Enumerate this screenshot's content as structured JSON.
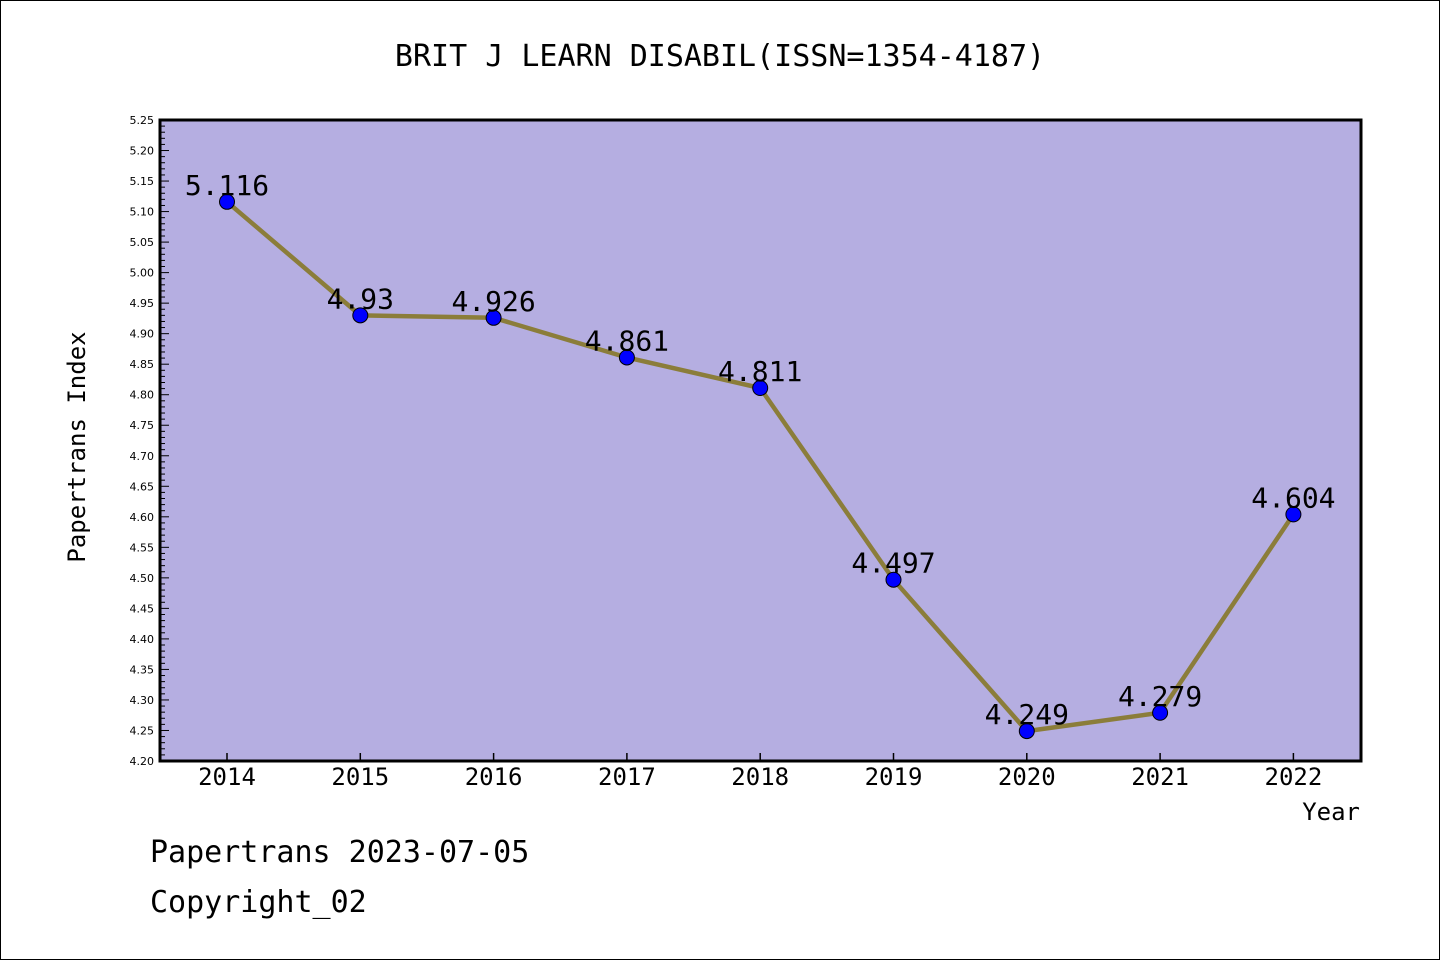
{
  "chart_data": {
    "type": "line",
    "title": "BRIT J LEARN DISABIL(ISSN=1354-4187)",
    "xlabel": "Year",
    "ylabel": "Papertrans Index",
    "categories": [
      "2014",
      "2015",
      "2016",
      "2017",
      "2018",
      "2019",
      "2020",
      "2021",
      "2022"
    ],
    "series": [
      {
        "values": [
          5.116,
          4.93,
          4.926,
          4.861,
          4.811,
          4.497,
          4.249,
          4.279,
          4.604
        ],
        "labels": [
          "5.116",
          "4.93",
          "4.926",
          "4.861",
          "4.811",
          "4.497",
          "4.249",
          "4.279",
          "4.604"
        ]
      }
    ],
    "ylim": [
      4.2,
      5.25
    ],
    "yticks": [
      "4.20",
      "4.25",
      "4.30",
      "4.35",
      "4.40",
      "4.45",
      "4.50",
      "4.55",
      "4.60",
      "4.65",
      "4.70",
      "4.75",
      "4.80",
      "4.85",
      "4.90",
      "4.95",
      "5.00",
      "5.05",
      "5.10",
      "5.15",
      "5.20",
      "5.25"
    ],
    "grid": false,
    "colors": {
      "plot_background": "#b5aee1",
      "line": "#8b7d3a",
      "marker": "#0000ff"
    }
  },
  "footer": {
    "line1": "Papertrans 2023-07-05",
    "line2": "Copyright_02"
  }
}
